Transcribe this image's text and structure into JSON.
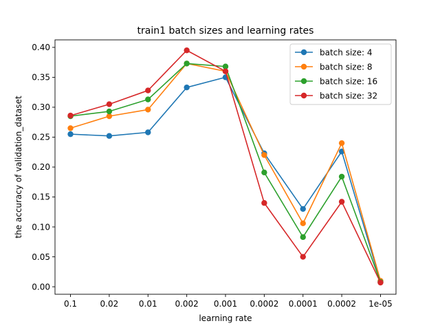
{
  "chart_data": {
    "type": "line",
    "title": "train1 batch sizes and learning rates",
    "xlabel": "learning rate",
    "ylabel": "the accuracy of validation_dataset",
    "categories": [
      "0.1",
      "0.02",
      "0.01",
      "0.002",
      "0.001",
      "0.0002",
      "0.0001",
      "0.0002",
      "1e-05"
    ],
    "ylim": [
      -0.0125,
      0.4125
    ],
    "yticks": [
      0.0,
      0.05,
      0.1,
      0.15,
      0.2,
      0.25,
      0.3,
      0.35,
      0.4
    ],
    "ytick_labels": [
      "0.00",
      "0.05",
      "0.10",
      "0.15",
      "0.20",
      "0.25",
      "0.30",
      "0.35",
      "0.40"
    ],
    "grid": false,
    "legend_position": "top-right",
    "series": [
      {
        "name": "batch size: 4",
        "color": "#1f77b4",
        "values": [
          0.255,
          0.252,
          0.258,
          0.333,
          0.35,
          0.223,
          0.13,
          0.226,
          0.008
        ]
      },
      {
        "name": "batch size: 8",
        "color": "#ff7f0e",
        "values": [
          0.265,
          0.285,
          0.296,
          0.373,
          0.36,
          0.22,
          0.106,
          0.24,
          0.01
        ]
      },
      {
        "name": "batch size: 16",
        "color": "#2ca02c",
        "values": [
          0.285,
          0.293,
          0.313,
          0.373,
          0.368,
          0.191,
          0.083,
          0.184,
          0.008
        ]
      },
      {
        "name": "batch size: 32",
        "color": "#d62728",
        "values": [
          0.286,
          0.305,
          0.328,
          0.395,
          0.36,
          0.14,
          0.05,
          0.142,
          0.007
        ]
      }
    ]
  }
}
